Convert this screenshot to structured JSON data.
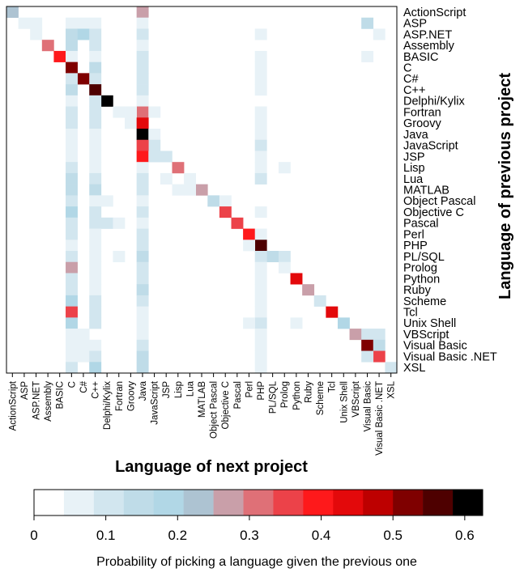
{
  "chart_data": {
    "type": "heatmap",
    "xlabel": "Language of next project",
    "ylabel": "Language of previous project",
    "languages": [
      "ActionScript",
      "ASP",
      "ASP.NET",
      "Assembly",
      "BASIC",
      "C",
      "C#",
      "C++",
      "Delphi/Kylix",
      "Fortran",
      "Groovy",
      "Java",
      "JavaScript",
      "JSP",
      "Lisp",
      "Lua",
      "MATLAB",
      "Object Pascal",
      "Objective C",
      "Pascal",
      "Perl",
      "PHP",
      "PL/SQL",
      "Prolog",
      "Python",
      "Ruby",
      "Scheme",
      "Tcl",
      "Unix Shell",
      "VBScript",
      "Visual Basic",
      "Visual Basic .NET",
      "XSL"
    ],
    "cells": [
      [
        0,
        0,
        0.22
      ],
      [
        0,
        11,
        0.28
      ],
      [
        1,
        1,
        0.07
      ],
      [
        1,
        2,
        0.05
      ],
      [
        1,
        5,
        0.05
      ],
      [
        1,
        6,
        0.05
      ],
      [
        1,
        7,
        0.05
      ],
      [
        1,
        11,
        0.05
      ],
      [
        1,
        12,
        0.03
      ],
      [
        1,
        21,
        0.03
      ],
      [
        1,
        30,
        0.15
      ],
      [
        2,
        2,
        0.05
      ],
      [
        2,
        5,
        0.15
      ],
      [
        2,
        6,
        0.2
      ],
      [
        2,
        7,
        0.1
      ],
      [
        2,
        11,
        0.1
      ],
      [
        2,
        21,
        0.05
      ],
      [
        2,
        31,
        0.05
      ],
      [
        3,
        3,
        0.3
      ],
      [
        3,
        5,
        0.15
      ],
      [
        3,
        7,
        0.1
      ],
      [
        3,
        11,
        0.05
      ],
      [
        4,
        4,
        0.4
      ],
      [
        4,
        5,
        0.05
      ],
      [
        4,
        7,
        0.05
      ],
      [
        4,
        11,
        0.1
      ],
      [
        4,
        21,
        0.05
      ],
      [
        4,
        30,
        0.05
      ],
      [
        5,
        5,
        0.5
      ],
      [
        5,
        7,
        0.15
      ],
      [
        5,
        11,
        0.1
      ],
      [
        5,
        21,
        0.05
      ],
      [
        6,
        6,
        0.5
      ],
      [
        6,
        5,
        0.1
      ],
      [
        6,
        7,
        0.1
      ],
      [
        6,
        11,
        0.1
      ],
      [
        6,
        21,
        0.05
      ],
      [
        7,
        7,
        0.55
      ],
      [
        7,
        5,
        0.15
      ],
      [
        7,
        11,
        0.1
      ],
      [
        7,
        21,
        0.05
      ],
      [
        8,
        8,
        0.6
      ],
      [
        8,
        5,
        0.05
      ],
      [
        8,
        7,
        0.1
      ],
      [
        8,
        11,
        0.05
      ],
      [
        9,
        9,
        0.05
      ],
      [
        9,
        11,
        0.3
      ],
      [
        9,
        10,
        0.05
      ],
      [
        9,
        5,
        0.1
      ],
      [
        9,
        7,
        0.1
      ],
      [
        9,
        12,
        0.05
      ],
      [
        9,
        21,
        0.05
      ],
      [
        10,
        10,
        0.05
      ],
      [
        10,
        11,
        0.45
      ],
      [
        10,
        5,
        0.1
      ],
      [
        10,
        7,
        0.1
      ],
      [
        10,
        21,
        0.05
      ],
      [
        11,
        11,
        0.63
      ],
      [
        11,
        5,
        0.05
      ],
      [
        11,
        7,
        0.05
      ],
      [
        11,
        12,
        0.05
      ],
      [
        11,
        21,
        0.05
      ],
      [
        12,
        12,
        0.1
      ],
      [
        12,
        11,
        0.35
      ],
      [
        12,
        5,
        0.05
      ],
      [
        12,
        7,
        0.05
      ],
      [
        12,
        21,
        0.1
      ],
      [
        13,
        13,
        0.1
      ],
      [
        13,
        11,
        0.4
      ],
      [
        13,
        12,
        0.1
      ],
      [
        13,
        5,
        0.05
      ],
      [
        13,
        7,
        0.05
      ],
      [
        13,
        9,
        0.03
      ],
      [
        13,
        21,
        0.05
      ],
      [
        14,
        14,
        0.3
      ],
      [
        14,
        5,
        0.1
      ],
      [
        14,
        7,
        0.05
      ],
      [
        14,
        11,
        0.05
      ],
      [
        14,
        21,
        0.05
      ],
      [
        14,
        23,
        0.05
      ],
      [
        15,
        15,
        0.05
      ],
      [
        15,
        5,
        0.15
      ],
      [
        15,
        7,
        0.1
      ],
      [
        15,
        11,
        0.1
      ],
      [
        15,
        21,
        0.1
      ],
      [
        15,
        13,
        0.05
      ],
      [
        16,
        16,
        0.28
      ],
      [
        16,
        5,
        0.15
      ],
      [
        16,
        7,
        0.15
      ],
      [
        16,
        11,
        0.1
      ],
      [
        16,
        14,
        0.05
      ],
      [
        16,
        15,
        0.05
      ],
      [
        17,
        17,
        0.15
      ],
      [
        17,
        5,
        0.1
      ],
      [
        17,
        7,
        0.05
      ],
      [
        17,
        8,
        0.05
      ],
      [
        17,
        11,
        0.05
      ],
      [
        17,
        18,
        0.05
      ],
      [
        18,
        18,
        0.35
      ],
      [
        18,
        5,
        0.2
      ],
      [
        18,
        7,
        0.1
      ],
      [
        18,
        11,
        0.1
      ],
      [
        18,
        21,
        0.05
      ],
      [
        19,
        19,
        0.35
      ],
      [
        19,
        5,
        0.1
      ],
      [
        19,
        7,
        0.1
      ],
      [
        19,
        8,
        0.1
      ],
      [
        19,
        9,
        0.05
      ],
      [
        19,
        11,
        0.05
      ],
      [
        20,
        20,
        0.4
      ],
      [
        20,
        5,
        0.1
      ],
      [
        20,
        7,
        0.05
      ],
      [
        20,
        11,
        0.1
      ],
      [
        20,
        21,
        0.05
      ],
      [
        21,
        21,
        0.58
      ],
      [
        21,
        5,
        0.05
      ],
      [
        21,
        7,
        0.05
      ],
      [
        21,
        11,
        0.1
      ],
      [
        21,
        20,
        0.05
      ],
      [
        22,
        22,
        0.15
      ],
      [
        22,
        23,
        0.1
      ],
      [
        22,
        5,
        0.1
      ],
      [
        22,
        7,
        0.05
      ],
      [
        22,
        9,
        0.05
      ],
      [
        22,
        11,
        0.15
      ],
      [
        22,
        21,
        0.1
      ],
      [
        23,
        23,
        0.05
      ],
      [
        23,
        5,
        0.28
      ],
      [
        23,
        7,
        0.05
      ],
      [
        23,
        11,
        0.1
      ],
      [
        23,
        21,
        0.05
      ],
      [
        24,
        24,
        0.45
      ],
      [
        24,
        5,
        0.1
      ],
      [
        24,
        7,
        0.05
      ],
      [
        24,
        11,
        0.1
      ],
      [
        24,
        21,
        0.05
      ],
      [
        25,
        25,
        0.28
      ],
      [
        25,
        5,
        0.1
      ],
      [
        25,
        7,
        0.05
      ],
      [
        25,
        11,
        0.15
      ],
      [
        25,
        21,
        0.05
      ],
      [
        26,
        26,
        0.1
      ],
      [
        26,
        5,
        0.2
      ],
      [
        26,
        7,
        0.1
      ],
      [
        26,
        11,
        0.1
      ],
      [
        26,
        21,
        0.05
      ],
      [
        27,
        27,
        0.42
      ],
      [
        27,
        5,
        0.35
      ],
      [
        27,
        7,
        0.1
      ],
      [
        27,
        11,
        0.05
      ],
      [
        27,
        21,
        0.05
      ],
      [
        28,
        28,
        0.2
      ],
      [
        28,
        5,
        0.2
      ],
      [
        28,
        7,
        0.1
      ],
      [
        28,
        11,
        0.05
      ],
      [
        28,
        21,
        0.1
      ],
      [
        28,
        20,
        0.05
      ],
      [
        28,
        24,
        0.05
      ],
      [
        29,
        29,
        0.28
      ],
      [
        29,
        30,
        0.1
      ],
      [
        29,
        31,
        0.1
      ],
      [
        29,
        5,
        0.05
      ],
      [
        29,
        6,
        0.05
      ],
      [
        29,
        11,
        0.05
      ],
      [
        29,
        21,
        0.05
      ],
      [
        30,
        30,
        0.5
      ],
      [
        30,
        31,
        0.15
      ],
      [
        30,
        5,
        0.05
      ],
      [
        30,
        6,
        0.05
      ],
      [
        30,
        7,
        0.05
      ],
      [
        30,
        11,
        0.1
      ],
      [
        30,
        21,
        0.05
      ],
      [
        31,
        31,
        0.35
      ],
      [
        31,
        30,
        0.1
      ],
      [
        31,
        5,
        0.05
      ],
      [
        31,
        6,
        0.05
      ],
      [
        31,
        7,
        0.1
      ],
      [
        31,
        11,
        0.15
      ],
      [
        31,
        21,
        0.05
      ],
      [
        32,
        32,
        0.1
      ],
      [
        32,
        5,
        0.1
      ],
      [
        32,
        7,
        0.2
      ],
      [
        32,
        11,
        0.15
      ],
      [
        32,
        21,
        0.05
      ]
    ],
    "colorbar": {
      "label": "Probability of picking a language given the previous one",
      "min": 0,
      "max": 0.625,
      "ticks": [
        "0",
        "0.1",
        "0.2",
        "0.3",
        "0.4",
        "0.5",
        "0.6"
      ],
      "tick_values": [
        0,
        0.1,
        0.2,
        0.3,
        0.4,
        0.5,
        0.6
      ],
      "colors": [
        "#ffffff",
        "#e8f2f7",
        "#d2e6ef",
        "#bfdce8",
        "#b1d7e6",
        "#adc3d2",
        "#c99fa9",
        "#df7077",
        "#ec4249",
        "#fe191b",
        "#e3090b",
        "#bd0000",
        "#7f0000",
        "#4e0000",
        "#000000"
      ]
    }
  }
}
